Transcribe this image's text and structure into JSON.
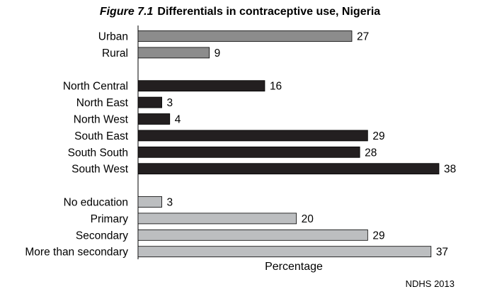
{
  "title": {
    "figure_label": "Figure 7.1",
    "text": "Differentials in contraceptive use, Nigeria"
  },
  "source": "NDHS 2013",
  "chart_data": {
    "type": "bar",
    "orientation": "horizontal",
    "title": "Figure 7.1 Differentials in contraceptive use, Nigeria",
    "xlabel": "Percentage",
    "ylabel": "",
    "xlim": [
      0,
      38
    ],
    "grid": false,
    "groups": [
      {
        "color": "#8c8c8c",
        "categories": [
          "Urban",
          "Rural"
        ],
        "values": [
          27,
          9
        ]
      },
      {
        "color": "#231f20",
        "categories": [
          "North Central",
          "North East",
          "North West",
          "South East",
          "South South",
          "South West"
        ],
        "values": [
          16,
          3,
          4,
          29,
          28,
          38
        ]
      },
      {
        "color": "#bcbec0",
        "categories": [
          "No education",
          "Primary",
          "Secondary",
          "More than secondary"
        ],
        "values": [
          3,
          20,
          29,
          37
        ]
      }
    ]
  }
}
